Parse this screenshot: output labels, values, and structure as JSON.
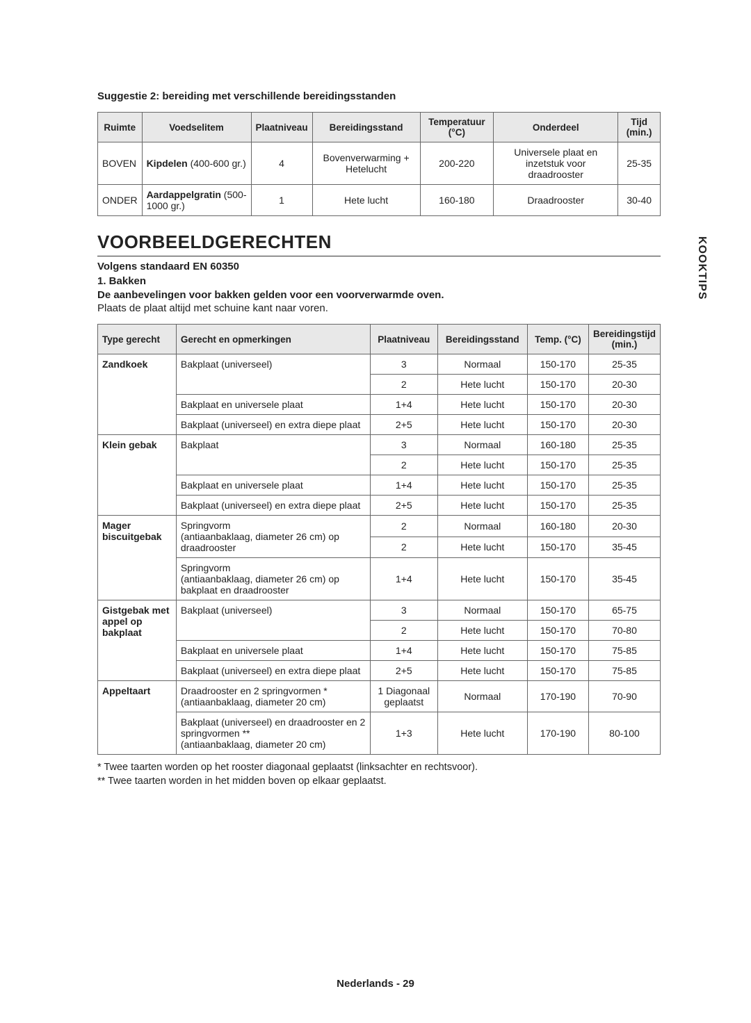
{
  "sideTab": "KOOKTIPS",
  "suggestionTitle": "Suggestie 2: bereiding met verschillende bereidingsstanden",
  "t1": {
    "headers": [
      "Ruimte",
      "Voedselitem",
      "Plaatniveau",
      "Bereidingsstand",
      "Temperatuur (°C)",
      "Onderdeel",
      "Tijd (min.)"
    ],
    "rows": [
      {
        "ruimte": "BOVEN",
        "itemBold": "Kipdelen",
        "itemRest": " (400-600 gr.)",
        "niveau": "4",
        "stand": "Bovenverwarming + Hetelucht",
        "temp": "200-220",
        "onderdeel": "Universele plaat en inzetstuk voor draadrooster",
        "tijd": "25-35"
      },
      {
        "ruimte": "ONDER",
        "itemBold": "Aardappelgratin",
        "itemRest": " (500-1000 gr.)",
        "niveau": "1",
        "stand": "Hete lucht",
        "temp": "160-180",
        "onderdeel": "Draadrooster",
        "tijd": "30-40"
      }
    ]
  },
  "mainHeading": "VOORBEELDGERECHTEN",
  "standard": "Volgens standaard EN 60350",
  "bakkenTitle": "1. Bakken",
  "bakkenNoteBold": "De aanbevelingen voor bakken gelden voor een voorverwarmde oven.",
  "bakkenNotePlain": "Plaats de plaat altijd met schuine kant naar voren.",
  "t2": {
    "headers": [
      "Type gerecht",
      "Gerecht en opmerkingen",
      "Plaatniveau",
      "Bereidingsstand",
      "Temp. (°C)",
      "Bereidingstijd (min.)"
    ],
    "groups": [
      {
        "type": "Zandkoek",
        "rows": [
          {
            "gerecht": "Bakplaat (universeel)",
            "subrows": [
              {
                "niveau": "3",
                "stand": "Normaal",
                "temp": "150-170",
                "tijd": "25-35"
              },
              {
                "niveau": "2",
                "stand": "Hete lucht",
                "temp": "150-170",
                "tijd": "20-30"
              }
            ]
          },
          {
            "gerecht": "Bakplaat en universele plaat",
            "subrows": [
              {
                "niveau": "1+4",
                "stand": "Hete lucht",
                "temp": "150-170",
                "tijd": "20-30"
              }
            ]
          },
          {
            "gerecht": "Bakplaat (universeel) en extra diepe plaat",
            "subrows": [
              {
                "niveau": "2+5",
                "stand": "Hete lucht",
                "temp": "150-170",
                "tijd": "20-30"
              }
            ]
          }
        ]
      },
      {
        "type": "Klein gebak",
        "rows": [
          {
            "gerecht": "Bakplaat",
            "subrows": [
              {
                "niveau": "3",
                "stand": "Normaal",
                "temp": "160-180",
                "tijd": "25-35"
              },
              {
                "niveau": "2",
                "stand": "Hete lucht",
                "temp": "150-170",
                "tijd": "25-35"
              }
            ]
          },
          {
            "gerecht": "Bakplaat en universele plaat",
            "subrows": [
              {
                "niveau": "1+4",
                "stand": "Hete lucht",
                "temp": "150-170",
                "tijd": "25-35"
              }
            ]
          },
          {
            "gerecht": "Bakplaat (universeel) en extra diepe plaat",
            "subrows": [
              {
                "niveau": "2+5",
                "stand": "Hete lucht",
                "temp": "150-170",
                "tijd": "25-35"
              }
            ]
          }
        ]
      },
      {
        "type": "Mager biscuitgebak",
        "rows": [
          {
            "gerecht": "Springvorm\n(antiaanbaklaag, diameter 26 cm) op draadrooster",
            "subrows": [
              {
                "niveau": "2",
                "stand": "Normaal",
                "temp": "160-180",
                "tijd": "20-30"
              },
              {
                "niveau": "2",
                "stand": "Hete lucht",
                "temp": "150-170",
                "tijd": "35-45"
              }
            ]
          },
          {
            "gerecht": "Springvorm\n(antiaanbaklaag, diameter 26 cm) op bakplaat en draadrooster",
            "subrows": [
              {
                "niveau": "1+4",
                "stand": "Hete lucht",
                "temp": "150-170",
                "tijd": "35-45"
              }
            ]
          }
        ]
      },
      {
        "type": "Gistgebak met appel op bakplaat",
        "rows": [
          {
            "gerecht": "Bakplaat (universeel)",
            "subrows": [
              {
                "niveau": "3",
                "stand": "Normaal",
                "temp": "150-170",
                "tijd": "65-75"
              },
              {
                "niveau": "2",
                "stand": "Hete lucht",
                "temp": "150-170",
                "tijd": "70-80"
              }
            ]
          },
          {
            "gerecht": "Bakplaat en universele plaat",
            "subrows": [
              {
                "niveau": "1+4",
                "stand": "Hete lucht",
                "temp": "150-170",
                "tijd": "75-85"
              }
            ]
          },
          {
            "gerecht": "Bakplaat (universeel) en extra diepe plaat",
            "subrows": [
              {
                "niveau": "2+5",
                "stand": "Hete lucht",
                "temp": "150-170",
                "tijd": "75-85"
              }
            ]
          }
        ]
      },
      {
        "type": "Appeltaart",
        "rows": [
          {
            "gerecht": "Draadrooster en 2 springvormen *\n(antiaanbaklaag, diameter 20 cm)",
            "subrows": [
              {
                "niveau": "1 Diagonaal geplaatst",
                "stand": "Normaal",
                "temp": "170-190",
                "tijd": "70-90"
              }
            ]
          },
          {
            "gerecht": "Bakplaat (universeel) en draadrooster en 2 springvormen **\n(antiaanbaklaag, diameter 20 cm)",
            "subrows": [
              {
                "niveau": "1+3",
                "stand": "Hete lucht",
                "temp": "170-190",
                "tijd": "80-100"
              }
            ]
          }
        ]
      }
    ]
  },
  "footnote1": "* Twee taarten worden op het rooster diagonaal geplaatst (linksachter en rechtsvoor).",
  "footnote2": "** Twee taarten worden in het midden boven op elkaar geplaatst.",
  "pageFooter": "Nederlands - 29"
}
